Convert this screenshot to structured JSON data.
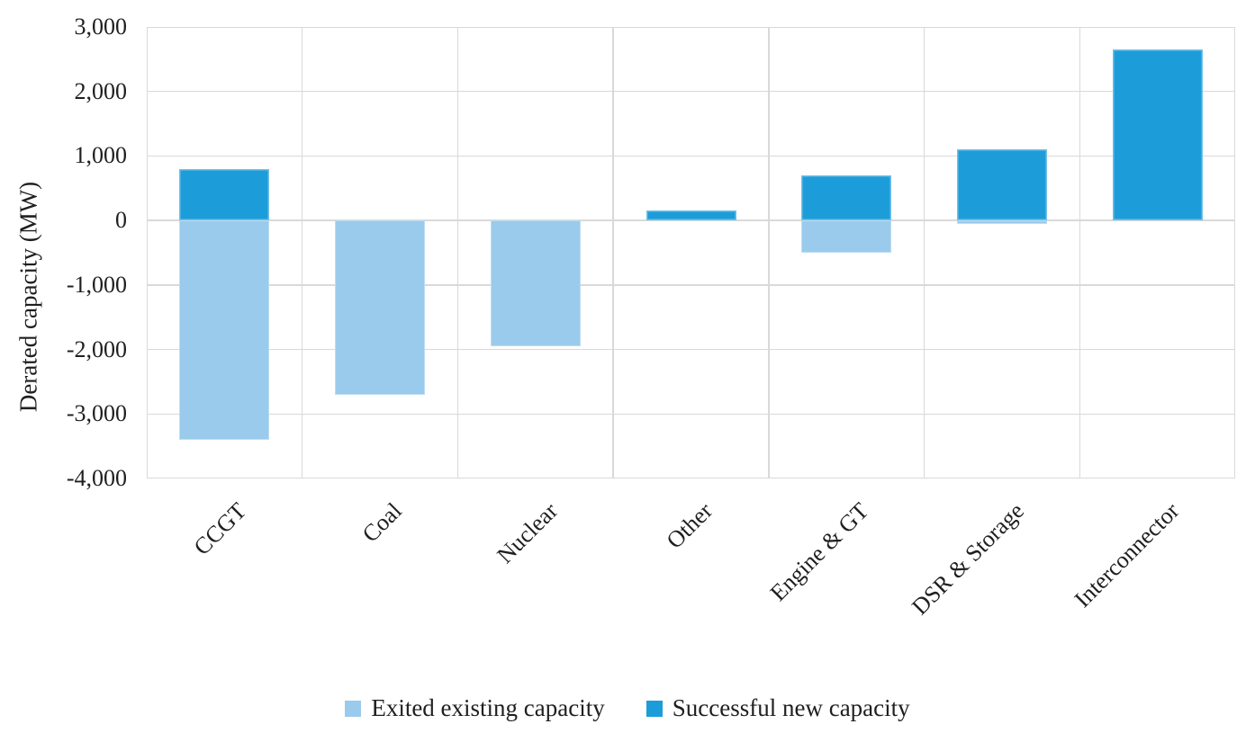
{
  "chart_data": {
    "type": "bar",
    "subtype": "stacked-diverging-columns",
    "title": "",
    "xlabel": "",
    "ylabel": "Derated capacity (MW)",
    "ylim": [
      -4000,
      3000
    ],
    "ytick_step": 1000,
    "ytick_labels": [
      "3,000",
      "2,000",
      "1,000",
      "0",
      "-1,000",
      "-2,000",
      "-3,000",
      "-4,000"
    ],
    "grid": true,
    "legend_position": "bottom",
    "categories": [
      "CCGT",
      "Coal",
      "Nuclear",
      "Other",
      "Engine & GT",
      "DSR & Storage",
      "Interconnector"
    ],
    "series": [
      {
        "name": "Exited existing capacity",
        "color": "#9ACBEC",
        "values": [
          -3400,
          -2700,
          -1950,
          0,
          -500,
          -50,
          0
        ]
      },
      {
        "name": "Successful new capacity",
        "color": "#1C9DDA",
        "values": [
          800,
          0,
          0,
          150,
          700,
          1100,
          2650
        ]
      }
    ]
  },
  "colors": {
    "gridline": "#d9d9d9",
    "text": "#1f1f1f",
    "background": "#ffffff"
  }
}
